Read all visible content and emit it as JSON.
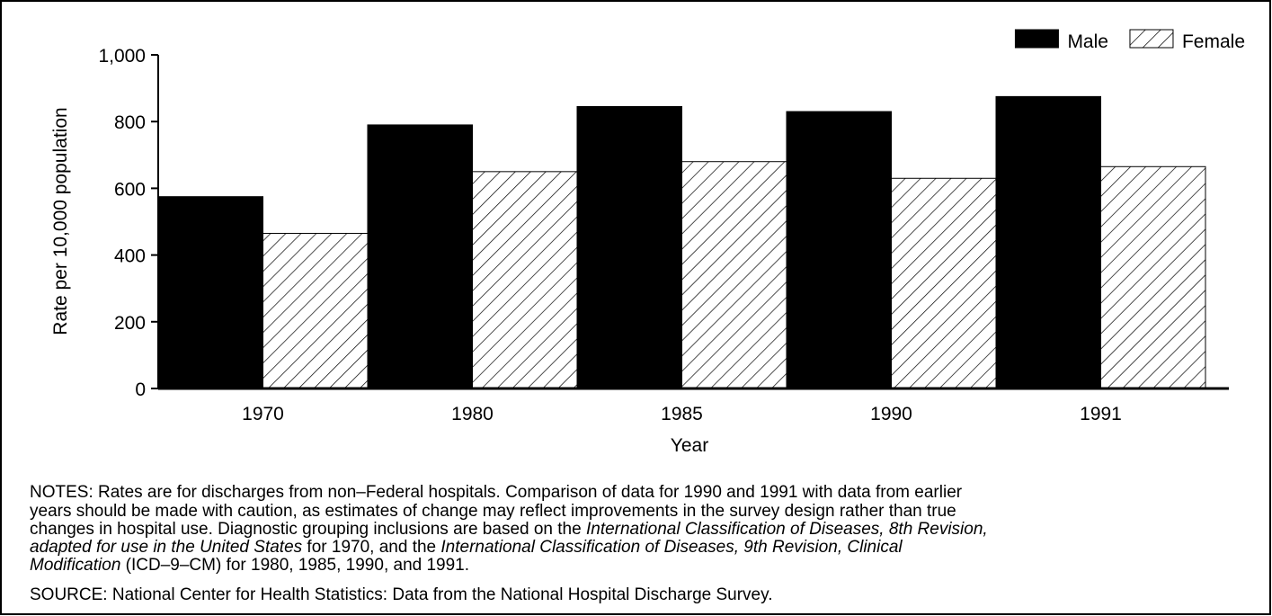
{
  "chart_data": {
    "type": "bar",
    "categories": [
      "1970",
      "1980",
      "1985",
      "1990",
      "1991"
    ],
    "series": [
      {
        "name": "Male",
        "color": "#000000",
        "values": [
          575,
          790,
          845,
          830,
          875
        ]
      },
      {
        "name": "Female",
        "color": "hatch",
        "values": [
          465,
          650,
          680,
          630,
          665
        ]
      }
    ],
    "ylim": [
      0,
      1000
    ],
    "yticks": [
      0,
      200,
      400,
      600,
      800,
      {
        "value": 1000,
        "label": "1,000"
      }
    ],
    "xlabel": "Year",
    "ylabel": "Rate per 10,000 population",
    "legend": "top-right"
  },
  "notes": [
    [
      {
        "text": "NOTES: Rates are for discharges from non–Federal hospitals. Comparison of data for 1990 and 1991 with data from earlier",
        "italic": false
      }
    ],
    [
      {
        "text": "years should be made with caution, as estimates of change may reflect improvements in the survey design rather than true",
        "italic": false
      }
    ],
    [
      {
        "text": "changes in hospital use. Diagnostic grouping inclusions are based on the ",
        "italic": false
      },
      {
        "text": "International Classification of Diseases, 8th Revision,",
        "italic": true
      }
    ],
    [
      {
        "text": "adapted for use in the United States",
        "italic": true
      },
      {
        "text": " for 1970, and the ",
        "italic": false
      },
      {
        "text": "International Classification of Diseases, 9th Revision, Clinical",
        "italic": true
      }
    ],
    [
      {
        "text": "Modification",
        "italic": true
      },
      {
        "text": " (ICD–9–CM) for 1980, 1985, 1990, and 1991.",
        "italic": false
      }
    ]
  ],
  "source": "SOURCE: National Center for Health Statistics: Data from the National Hospital Discharge Survey."
}
